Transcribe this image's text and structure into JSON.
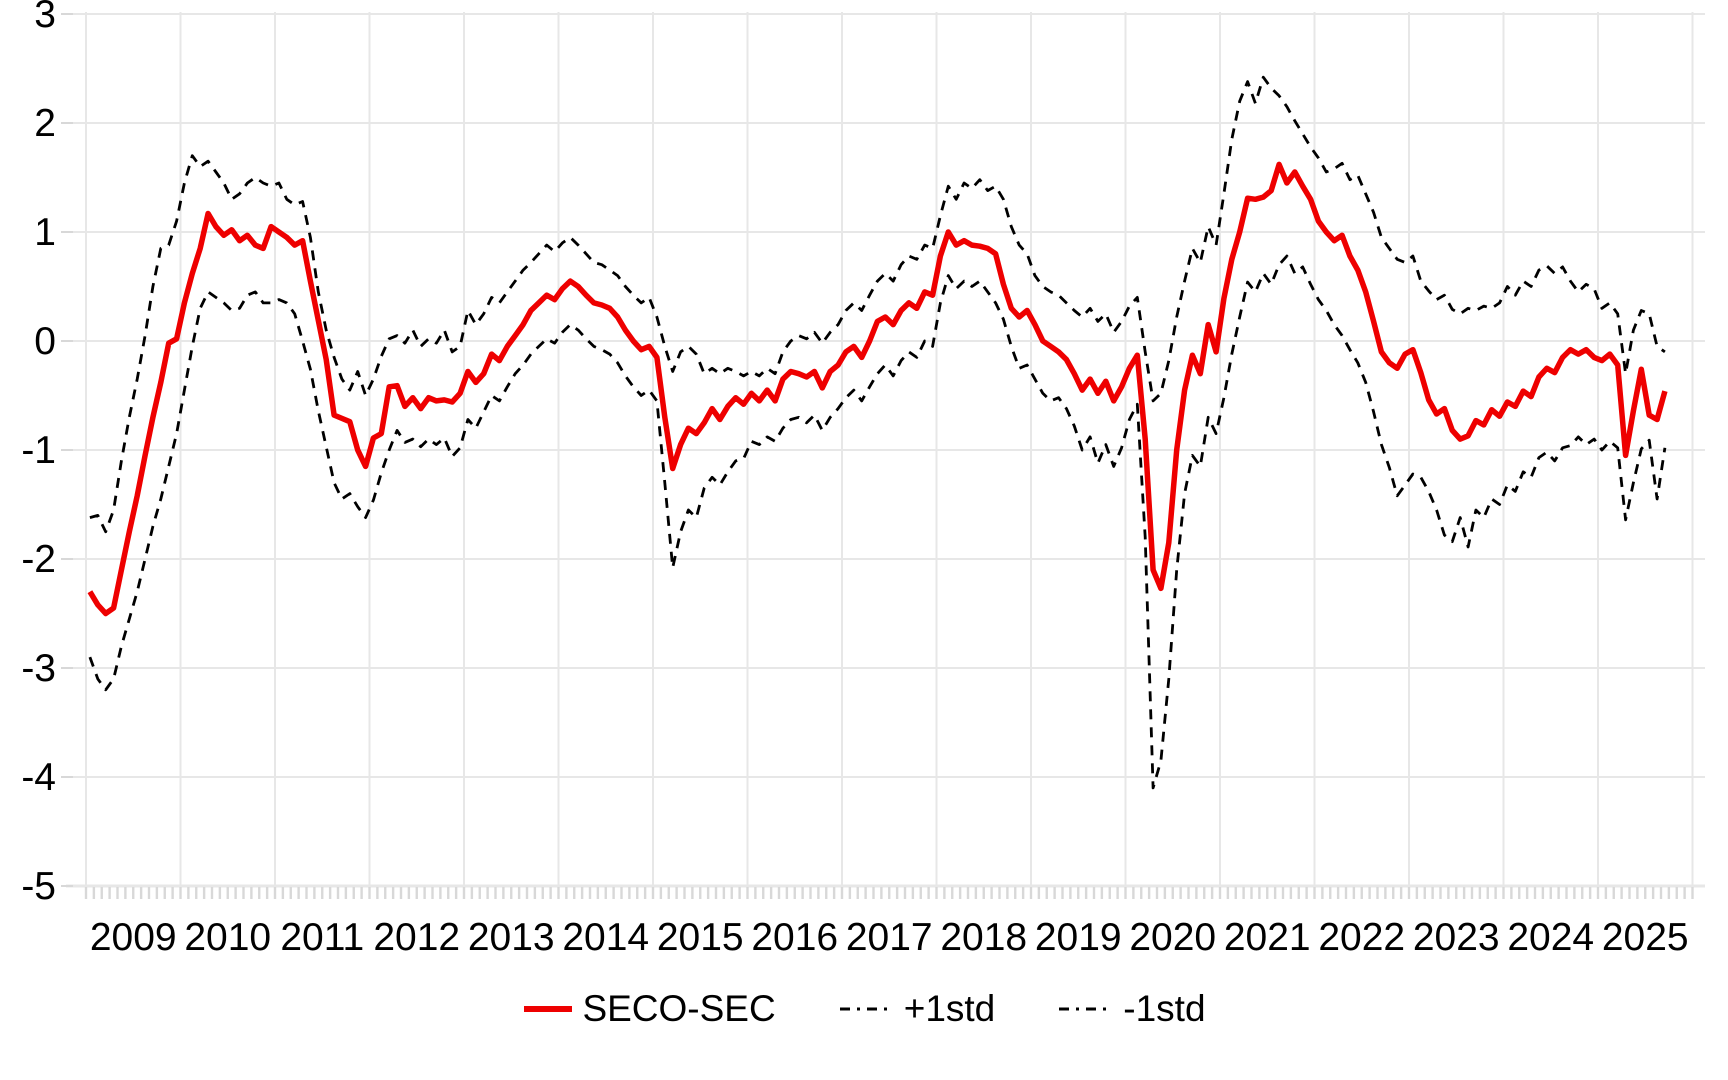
{
  "chart_data": {
    "type": "line",
    "title": "",
    "xlabel": "",
    "ylabel": "",
    "ylim": [
      -5,
      3
    ],
    "grid": true,
    "legend_position": "bottom",
    "x_start": "2009-01",
    "x_end": "2025-09",
    "x_frequency": "monthly",
    "x_tick_labels": [
      "2009",
      "2010",
      "2011",
      "2012",
      "2013",
      "2014",
      "2015",
      "2016",
      "2017",
      "2018",
      "2019",
      "2020",
      "2021",
      "2022",
      "2023",
      "2024",
      "2025"
    ],
    "y_tick_labels": [
      "3",
      "2",
      "1",
      "0",
      "-1",
      "-2",
      "-3",
      "-4",
      "-5"
    ],
    "y_tick_values": [
      3,
      2,
      1,
      0,
      -1,
      -2,
      -3,
      -4,
      -5
    ],
    "series": [
      {
        "name": "SECO-SEC",
        "style": "solid",
        "color": "#ee0000",
        "values": [
          -2.3,
          -2.42,
          -2.5,
          -2.45,
          -2.1,
          -1.75,
          -1.42,
          -1.05,
          -0.7,
          -0.38,
          -0.02,
          0.02,
          0.35,
          0.62,
          0.85,
          1.17,
          1.05,
          0.97,
          1.02,
          0.92,
          0.97,
          0.88,
          0.85,
          1.05,
          1.0,
          0.95,
          0.88,
          0.92,
          0.55,
          0.19,
          -0.17,
          -0.68,
          -0.71,
          -0.74,
          -1.0,
          -1.15,
          -0.89,
          -0.85,
          -0.42,
          -0.41,
          -0.6,
          -0.52,
          -0.62,
          -0.52,
          -0.55,
          -0.54,
          -0.56,
          -0.48,
          -0.28,
          -0.38,
          -0.3,
          -0.12,
          -0.18,
          -0.05,
          0.05,
          0.15,
          0.28,
          0.35,
          0.42,
          0.38,
          0.48,
          0.55,
          0.5,
          0.42,
          0.35,
          0.33,
          0.3,
          0.22,
          0.1,
          0.0,
          -0.08,
          -0.05,
          -0.15,
          -0.7,
          -1.17,
          -0.95,
          -0.8,
          -0.85,
          -0.75,
          -0.62,
          -0.72,
          -0.6,
          -0.52,
          -0.58,
          -0.48,
          -0.55,
          -0.45,
          -0.55,
          -0.35,
          -0.28,
          -0.3,
          -0.33,
          -0.28,
          -0.43,
          -0.28,
          -0.22,
          -0.1,
          -0.05,
          -0.15,
          0.0,
          0.18,
          0.22,
          0.15,
          0.28,
          0.35,
          0.3,
          0.45,
          0.42,
          0.78,
          1.0,
          0.88,
          0.92,
          0.88,
          0.87,
          0.85,
          0.8,
          0.52,
          0.3,
          0.22,
          0.28,
          0.15,
          0.0,
          -0.05,
          -0.1,
          -0.17,
          -0.3,
          -0.45,
          -0.35,
          -0.48,
          -0.37,
          -0.55,
          -0.42,
          -0.25,
          -0.13,
          -0.9,
          -2.1,
          -2.27,
          -1.85,
          -1.0,
          -0.45,
          -0.13,
          -0.3,
          0.15,
          -0.1,
          0.39,
          0.75,
          1.0,
          1.31,
          1.3,
          1.32,
          1.38,
          1.62,
          1.45,
          1.55,
          1.42,
          1.3,
          1.1,
          1.0,
          0.92,
          0.97,
          0.78,
          0.65,
          0.45,
          0.18,
          -0.1,
          -0.2,
          -0.25,
          -0.12,
          -0.08,
          -0.29,
          -0.54,
          -0.67,
          -0.62,
          -0.82,
          -0.9,
          -0.87,
          -0.73,
          -0.77,
          -0.63,
          -0.69,
          -0.56,
          -0.6,
          -0.46,
          -0.51,
          -0.33,
          -0.25,
          -0.29,
          -0.15,
          -0.08,
          -0.12,
          -0.08,
          -0.15,
          -0.18,
          -0.12,
          -0.22,
          -1.05,
          -0.64,
          -0.26,
          -0.68,
          -0.72,
          -0.46
        ]
      },
      {
        "name": "+1std",
        "style": "dashed",
        "color": "#000000",
        "values": [
          -1.62,
          -1.6,
          -1.75,
          -1.55,
          -1.1,
          -0.7,
          -0.35,
          0.05,
          0.5,
          0.85,
          0.88,
          1.1,
          1.45,
          1.7,
          1.6,
          1.65,
          1.55,
          1.45,
          1.3,
          1.35,
          1.45,
          1.5,
          1.45,
          1.42,
          1.45,
          1.3,
          1.25,
          1.28,
          0.95,
          0.45,
          0.1,
          -0.15,
          -0.35,
          -0.45,
          -0.28,
          -0.5,
          -0.35,
          -0.14,
          0.02,
          0.05,
          -0.02,
          0.1,
          -0.05,
          0.02,
          -0.02,
          0.1,
          -0.1,
          -0.05,
          0.28,
          0.15,
          0.25,
          0.4,
          0.35,
          0.45,
          0.55,
          0.65,
          0.72,
          0.8,
          0.88,
          0.82,
          0.9,
          0.95,
          0.88,
          0.8,
          0.72,
          0.7,
          0.65,
          0.6,
          0.5,
          0.42,
          0.35,
          0.4,
          0.22,
          -0.05,
          -0.28,
          -0.1,
          -0.05,
          -0.12,
          -0.3,
          -0.25,
          -0.3,
          -0.25,
          -0.28,
          -0.32,
          -0.28,
          -0.32,
          -0.25,
          -0.3,
          -0.1,
          0.0,
          0.05,
          0.02,
          0.08,
          -0.02,
          0.08,
          0.15,
          0.28,
          0.35,
          0.28,
          0.42,
          0.55,
          0.62,
          0.55,
          0.7,
          0.78,
          0.75,
          0.88,
          0.85,
          1.15,
          1.42,
          1.3,
          1.45,
          1.4,
          1.48,
          1.38,
          1.42,
          1.3,
          1.05,
          0.88,
          0.8,
          0.6,
          0.5,
          0.45,
          0.42,
          0.35,
          0.28,
          0.22,
          0.3,
          0.18,
          0.25,
          0.08,
          0.18,
          0.32,
          0.4,
          -0.1,
          -0.55,
          -0.48,
          -0.18,
          0.22,
          0.55,
          0.85,
          0.72,
          1.05,
          0.88,
          1.35,
          1.85,
          2.2,
          2.38,
          2.18,
          2.42,
          2.32,
          2.25,
          2.15,
          2.02,
          1.9,
          1.78,
          1.68,
          1.55,
          1.58,
          1.63,
          1.48,
          1.52,
          1.35,
          1.18,
          0.95,
          0.85,
          0.75,
          0.72,
          0.78,
          0.55,
          0.46,
          0.38,
          0.42,
          0.29,
          0.25,
          0.3,
          0.28,
          0.32,
          0.3,
          0.35,
          0.5,
          0.42,
          0.55,
          0.5,
          0.65,
          0.69,
          0.62,
          0.68,
          0.55,
          0.45,
          0.52,
          0.48,
          0.3,
          0.35,
          0.25,
          -0.3,
          0.1,
          0.28,
          0.25,
          -0.05,
          -0.1
        ]
      },
      {
        "name": "-1std",
        "style": "dashed",
        "color": "#000000",
        "values": [
          -2.9,
          -3.1,
          -3.2,
          -3.1,
          -2.8,
          -2.55,
          -2.3,
          -2.0,
          -1.7,
          -1.45,
          -1.15,
          -0.85,
          -0.45,
          -0.05,
          0.3,
          0.45,
          0.4,
          0.35,
          0.28,
          0.3,
          0.42,
          0.45,
          0.35,
          0.35,
          0.38,
          0.35,
          0.25,
          0.0,
          -0.26,
          -0.64,
          -0.97,
          -1.3,
          -1.45,
          -1.4,
          -1.52,
          -1.62,
          -1.46,
          -1.21,
          -1.0,
          -0.82,
          -0.93,
          -0.9,
          -0.97,
          -0.9,
          -0.95,
          -0.89,
          -1.06,
          -0.98,
          -0.72,
          -0.8,
          -0.65,
          -0.5,
          -0.55,
          -0.42,
          -0.3,
          -0.22,
          -0.12,
          -0.05,
          0.02,
          -0.02,
          0.08,
          0.15,
          0.1,
          0.02,
          -0.05,
          -0.08,
          -0.12,
          -0.2,
          -0.32,
          -0.42,
          -0.5,
          -0.45,
          -0.55,
          -1.3,
          -2.08,
          -1.75,
          -1.55,
          -1.62,
          -1.35,
          -1.25,
          -1.32,
          -1.2,
          -1.1,
          -1.08,
          -0.92,
          -0.95,
          -0.88,
          -0.92,
          -0.8,
          -0.72,
          -0.7,
          -0.75,
          -0.68,
          -0.82,
          -0.7,
          -0.62,
          -0.52,
          -0.45,
          -0.55,
          -0.42,
          -0.3,
          -0.22,
          -0.32,
          -0.18,
          -0.1,
          -0.15,
          0.0,
          -0.05,
          0.35,
          0.6,
          0.48,
          0.55,
          0.5,
          0.55,
          0.45,
          0.35,
          0.2,
          -0.05,
          -0.25,
          -0.22,
          -0.35,
          -0.48,
          -0.55,
          -0.52,
          -0.62,
          -0.78,
          -1.0,
          -0.88,
          -1.12,
          -0.95,
          -1.15,
          -0.98,
          -0.72,
          -0.58,
          -1.8,
          -4.1,
          -3.85,
          -3.1,
          -2.1,
          -1.4,
          -1.05,
          -1.15,
          -0.7,
          -0.85,
          -0.52,
          -0.12,
          0.22,
          0.54,
          0.45,
          0.62,
          0.52,
          0.7,
          0.78,
          0.62,
          0.68,
          0.52,
          0.38,
          0.28,
          0.15,
          0.05,
          -0.08,
          -0.2,
          -0.38,
          -0.65,
          -0.95,
          -1.16,
          -1.42,
          -1.32,
          -1.22,
          -1.25,
          -1.38,
          -1.55,
          -1.78,
          -1.84,
          -1.62,
          -1.89,
          -1.55,
          -1.62,
          -1.45,
          -1.5,
          -1.32,
          -1.38,
          -1.2,
          -1.25,
          -1.07,
          -1.02,
          -1.1,
          -0.98,
          -0.96,
          -0.88,
          -0.95,
          -0.9,
          -1.0,
          -0.92,
          -0.98,
          -1.64,
          -1.3,
          -0.99,
          -0.91,
          -1.45,
          -0.98
        ]
      }
    ]
  },
  "legend": {
    "items": [
      {
        "label": "SECO-SEC",
        "swatch": "red-solid-line"
      },
      {
        "label": "+1std",
        "swatch": "black-dashed-line"
      },
      {
        "label": "-1std",
        "swatch": "black-dashed-line"
      }
    ]
  },
  "colors": {
    "series_main": "#ee0000",
    "series_band": "#000000",
    "grid": "#e7e7e7",
    "axis_line": "#e2e2e2",
    "tick": "#d8d8d8",
    "text": "#000000",
    "background": "#ffffff"
  }
}
